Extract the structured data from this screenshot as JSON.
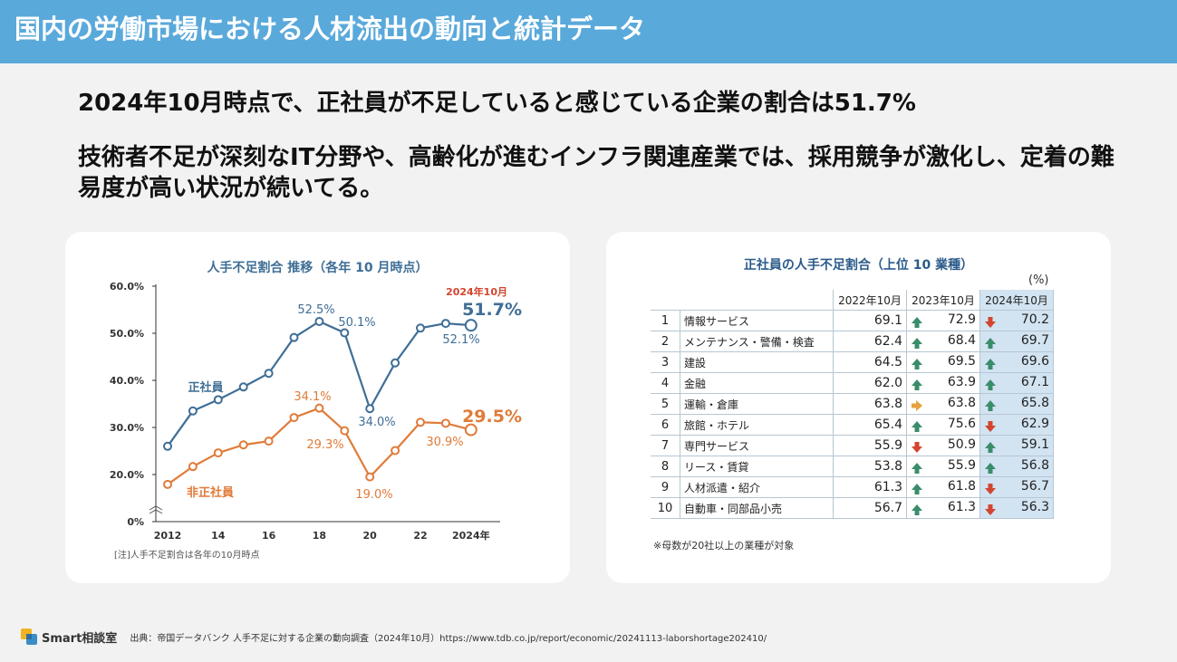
{
  "header": {
    "title": "国内の労働市場における人材流出の動向と統計データ"
  },
  "lead": {
    "line1": "2024年10月時点で、正社員が不足していると感じている企業の割合は51.7%",
    "line2": "技術者不足が深刻なIT分野や、高齢化が進むインフラ関連産業では、採用競争が激化し、定着の難易度が高い状況が続いてる。"
  },
  "chart_data": [
    {
      "type": "line",
      "title": "人手不足割合 推移（各年 10 月時点）",
      "x": [
        2012,
        2013,
        2014,
        2015,
        2016,
        2017,
        2018,
        2019,
        2020,
        2021,
        2022,
        2023,
        2024
      ],
      "xticks": [
        "2012",
        "14",
        "16",
        "18",
        "20",
        "22",
        "2024年"
      ],
      "yticks": [
        "0%",
        "20.0%",
        "30.0%",
        "40.0%",
        "50.0%",
        "60.0%"
      ],
      "ylim": [
        0,
        60
      ],
      "series": [
        {
          "name": "正社員",
          "color": "#3f6e96",
          "values": [
            26.0,
            33.5,
            35.9,
            38.6,
            41.5,
            49.1,
            52.5,
            50.1,
            34.0,
            43.7,
            51.1,
            52.1,
            51.7
          ]
        },
        {
          "name": "非正社員",
          "color": "#e07b39",
          "values": [
            15.8,
            21.7,
            24.6,
            26.3,
            27.1,
            32.1,
            34.1,
            29.3,
            19.0,
            25.1,
            31.1,
            30.9,
            29.5
          ]
        }
      ],
      "annotations": {
        "s0": [
          "52.5%",
          "50.1%",
          "34.0%",
          "52.1%",
          "51.7%"
        ],
        "s1": [
          "34.1%",
          "29.3%",
          "19.0%",
          "30.9%",
          "29.5%"
        ],
        "latest": "2024年10月"
      },
      "note": "[注]人手不足割合は各年の10月時点"
    },
    {
      "type": "table",
      "title": "正社員の人手不足割合（上位 10 業種）",
      "unit": "(%)",
      "columns": [
        "2022年10月",
        "2023年10月",
        "2024年10月"
      ],
      "rows": [
        {
          "rank": "1",
          "industry": "情報サービス",
          "v2022": "69.1",
          "v2023": "72.9",
          "t2023": "up",
          "v2024": "70.2",
          "t2024": "down"
        },
        {
          "rank": "2",
          "industry": "メンテナンス・警備・検査",
          "v2022": "62.4",
          "v2023": "68.4",
          "t2023": "up",
          "v2024": "69.7",
          "t2024": "up"
        },
        {
          "rank": "3",
          "industry": "建設",
          "v2022": "64.5",
          "v2023": "69.5",
          "t2023": "up",
          "v2024": "69.6",
          "t2024": "up"
        },
        {
          "rank": "4",
          "industry": "金融",
          "v2022": "62.0",
          "v2023": "63.9",
          "t2023": "up",
          "v2024": "67.1",
          "t2024": "up"
        },
        {
          "rank": "5",
          "industry": "運輸・倉庫",
          "v2022": "63.8",
          "v2023": "63.8",
          "t2023": "flat",
          "v2024": "65.8",
          "t2024": "up"
        },
        {
          "rank": "6",
          "industry": "旅館・ホテル",
          "v2022": "65.4",
          "v2023": "75.6",
          "t2023": "up",
          "v2024": "62.9",
          "t2024": "down"
        },
        {
          "rank": "7",
          "industry": "専門サービス",
          "v2022": "55.9",
          "v2023": "50.9",
          "t2023": "down",
          "v2024": "59.1",
          "t2024": "up"
        },
        {
          "rank": "8",
          "industry": "リース・賃貸",
          "v2022": "53.8",
          "v2023": "55.9",
          "t2023": "up",
          "v2024": "56.8",
          "t2024": "up"
        },
        {
          "rank": "9",
          "industry": "人材派遣・紹介",
          "v2022": "61.3",
          "v2023": "61.8",
          "t2023": "up",
          "v2024": "56.7",
          "t2024": "down"
        },
        {
          "rank": "10",
          "industry": "自動車・同部品小売",
          "v2022": "56.7",
          "v2023": "61.3",
          "t2023": "up",
          "v2024": "56.3",
          "t2024": "down"
        }
      ],
      "note": "※母数が20社以上の業種が対象"
    }
  ],
  "colors": {
    "header": "#5aa9db",
    "up": "#3a8d6b",
    "down": "#d2452f",
    "flat": "#e6a23c"
  },
  "footer": {
    "brand": "Smart相談室",
    "source": "出典：帝国データバンク 人手不足に対する企業の動向調査（2024年10月）https://www.tdb.co.jp/report/economic/20241113-laborshortage202410/"
  }
}
